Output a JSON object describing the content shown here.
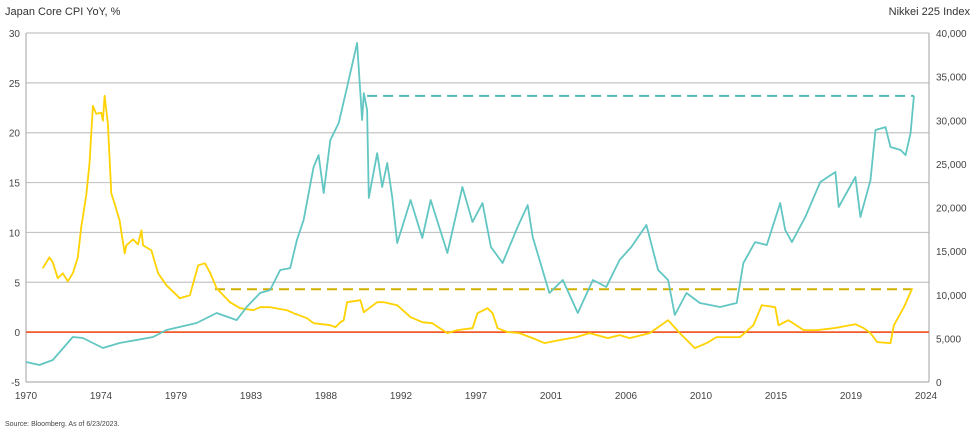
{
  "chart_data": {
    "type": "line",
    "title_left": "Japan Core CPI YoY, %",
    "title_right": "Nikkei 225 Index",
    "source": "Source: Bloomberg. As of 6/23/2023.",
    "xlim": [
      1970,
      2024
    ],
    "x_ticks": [
      "1970",
      "1974",
      "1979",
      "1983",
      "1988",
      "1992",
      "1997",
      "2001",
      "2006",
      "2010",
      "2015",
      "2019",
      "2024"
    ],
    "y_left": {
      "label": "Japan Core CPI YoY, %",
      "lim": [
        -5,
        30
      ],
      "ticks": [
        "30",
        "25",
        "20",
        "15",
        "10",
        "5",
        "0",
        "-5"
      ]
    },
    "y_right": {
      "label": "Nikkei 225 Index",
      "lim": [
        0,
        40000
      ],
      "ticks": [
        "40,000",
        "35,000",
        "30,000",
        "25,000",
        "20,000",
        "15,000",
        "10,000",
        "5,000",
        "0"
      ]
    },
    "grid": true,
    "colors": {
      "cpi": "#FFD200",
      "cpi_ref": "#D2B000",
      "nikkei": "#62C6C2",
      "nikkei_ref": "#52B8B2",
      "zero": "#F05A28",
      "grid": "#C4C4C4"
    },
    "series": [
      {
        "name": "Japan Core CPI YoY",
        "axis": "left",
        "points": [
          [
            1971.0,
            6.4
          ],
          [
            1971.4,
            7.5
          ],
          [
            1971.6,
            7.0
          ],
          [
            1971.9,
            5.4
          ],
          [
            1972.2,
            5.9
          ],
          [
            1972.5,
            5.1
          ],
          [
            1972.8,
            5.9
          ],
          [
            1973.1,
            7.5
          ],
          [
            1973.3,
            10.5
          ],
          [
            1973.6,
            13.7
          ],
          [
            1973.8,
            16.9
          ],
          [
            1974.0,
            22.7
          ],
          [
            1974.2,
            21.9
          ],
          [
            1974.5,
            22.0
          ],
          [
            1974.6,
            21.2
          ],
          [
            1974.7,
            23.7
          ],
          [
            1974.9,
            20.9
          ],
          [
            1975.1,
            13.9
          ],
          [
            1975.3,
            12.9
          ],
          [
            1975.6,
            11.2
          ],
          [
            1975.9,
            7.9
          ],
          [
            1976.0,
            8.7
          ],
          [
            1976.4,
            9.3
          ],
          [
            1976.7,
            8.8
          ],
          [
            1976.9,
            10.2
          ],
          [
            1977.0,
            8.7
          ],
          [
            1977.5,
            8.2
          ],
          [
            1977.9,
            5.9
          ],
          [
            1978.4,
            4.7
          ],
          [
            1979.2,
            3.4
          ],
          [
            1979.8,
            3.7
          ],
          [
            1980.3,
            6.7
          ],
          [
            1980.7,
            6.9
          ],
          [
            1981.0,
            6.0
          ],
          [
            1981.4,
            4.4
          ],
          [
            1982.2,
            3.0
          ],
          [
            1982.8,
            2.4
          ],
          [
            1983.6,
            2.2
          ],
          [
            1984.0,
            2.5
          ],
          [
            1984.6,
            2.5
          ],
          [
            1985.6,
            2.2
          ],
          [
            1986.0,
            1.9
          ],
          [
            1986.8,
            1.4
          ],
          [
            1987.2,
            0.9
          ],
          [
            1988.2,
            0.7
          ],
          [
            1988.5,
            0.5
          ],
          [
            1988.8,
            1.0
          ],
          [
            1989.0,
            1.2
          ],
          [
            1989.2,
            3.0
          ],
          [
            1990.0,
            3.2
          ],
          [
            1990.2,
            2.0
          ],
          [
            1991.0,
            3.0
          ],
          [
            1991.4,
            3.0
          ],
          [
            1992.2,
            2.7
          ],
          [
            1993.0,
            1.5
          ],
          [
            1993.7,
            1.0
          ],
          [
            1994.3,
            0.9
          ],
          [
            1995.2,
            -0.1
          ],
          [
            1995.8,
            0.2
          ],
          [
            1996.7,
            0.4
          ],
          [
            1997.0,
            1.9
          ],
          [
            1997.6,
            2.4
          ],
          [
            1997.9,
            1.9
          ],
          [
            1998.2,
            0.4
          ],
          [
            1998.8,
            0.0
          ],
          [
            1999.5,
            -0.1
          ],
          [
            2000.3,
            -0.6
          ],
          [
            2001.0,
            -1.1
          ],
          [
            2001.9,
            -0.8
          ],
          [
            2002.9,
            -0.5
          ],
          [
            2003.7,
            -0.1
          ],
          [
            2004.8,
            -0.6
          ],
          [
            2005.5,
            -0.3
          ],
          [
            2006.1,
            -0.6
          ],
          [
            2007.3,
            -0.1
          ],
          [
            2008.4,
            1.2
          ],
          [
            2009.1,
            -0.1
          ],
          [
            2010.0,
            -1.6
          ],
          [
            2010.7,
            -1.1
          ],
          [
            2011.3,
            -0.5
          ],
          [
            2012.7,
            -0.5
          ],
          [
            2013.5,
            0.7
          ],
          [
            2014.0,
            2.7
          ],
          [
            2014.8,
            2.5
          ],
          [
            2015.0,
            0.7
          ],
          [
            2015.6,
            1.2
          ],
          [
            2016.5,
            0.2
          ],
          [
            2017.3,
            0.2
          ],
          [
            2018.3,
            0.4
          ],
          [
            2019.6,
            0.8
          ],
          [
            2020.1,
            0.4
          ],
          [
            2020.5,
            -0.1
          ],
          [
            2020.9,
            -1.0
          ],
          [
            2021.7,
            -1.1
          ],
          [
            2021.9,
            0.7
          ],
          [
            2022.5,
            2.5
          ],
          [
            2023.0,
            4.4
          ]
        ]
      },
      {
        "name": "Nikkei 225 Index",
        "axis": "right",
        "points": [
          [
            1970.0,
            2290
          ],
          [
            1970.8,
            1950
          ],
          [
            1971.6,
            2520
          ],
          [
            1972.8,
            5160
          ],
          [
            1973.4,
            5040
          ],
          [
            1974.6,
            3900
          ],
          [
            1975.6,
            4470
          ],
          [
            1977.6,
            5160
          ],
          [
            1978.4,
            5960
          ],
          [
            1980.2,
            6760
          ],
          [
            1981.4,
            7910
          ],
          [
            1982.6,
            7100
          ],
          [
            1983.2,
            8600
          ],
          [
            1984.0,
            10200
          ],
          [
            1984.6,
            10540
          ],
          [
            1985.2,
            12840
          ],
          [
            1985.8,
            13060
          ],
          [
            1986.2,
            16270
          ],
          [
            1986.6,
            18560
          ],
          [
            1987.2,
            24640
          ],
          [
            1987.5,
            26010
          ],
          [
            1987.8,
            21660
          ],
          [
            1988.2,
            27730
          ],
          [
            1988.7,
            29680
          ],
          [
            1989.2,
            33800
          ],
          [
            1989.8,
            38850
          ],
          [
            1990.1,
            30030
          ],
          [
            1990.2,
            33110
          ],
          [
            1990.4,
            31170
          ],
          [
            1990.5,
            21090
          ],
          [
            1991.0,
            26240
          ],
          [
            1991.3,
            22350
          ],
          [
            1991.6,
            25100
          ],
          [
            1991.9,
            21200
          ],
          [
            1992.2,
            15930
          ],
          [
            1993.0,
            20860
          ],
          [
            1993.7,
            16500
          ],
          [
            1994.2,
            20860
          ],
          [
            1995.2,
            14780
          ],
          [
            1996.1,
            22350
          ],
          [
            1996.7,
            18340
          ],
          [
            1997.3,
            20510
          ],
          [
            1997.8,
            15470
          ],
          [
            1998.5,
            13640
          ],
          [
            1999.4,
            17760
          ],
          [
            2000.0,
            20280
          ],
          [
            2000.3,
            16620
          ],
          [
            2001.3,
            10200
          ],
          [
            2002.1,
            11690
          ],
          [
            2003.0,
            7910
          ],
          [
            2003.9,
            11690
          ],
          [
            2004.7,
            10890
          ],
          [
            2005.5,
            13980
          ],
          [
            2006.2,
            15470
          ],
          [
            2007.1,
            17990
          ],
          [
            2007.8,
            12840
          ],
          [
            2008.4,
            11690
          ],
          [
            2008.8,
            7680
          ],
          [
            2009.5,
            10200
          ],
          [
            2010.3,
            9050
          ],
          [
            2011.5,
            8600
          ],
          [
            2012.5,
            9050
          ],
          [
            2012.9,
            13640
          ],
          [
            2013.6,
            16040
          ],
          [
            2014.3,
            15700
          ],
          [
            2015.1,
            20510
          ],
          [
            2015.4,
            17420
          ],
          [
            2015.8,
            16040
          ],
          [
            2016.6,
            18910
          ],
          [
            2017.5,
            22920
          ],
          [
            2018.4,
            24070
          ],
          [
            2018.6,
            20060
          ],
          [
            2019.6,
            23490
          ],
          [
            2019.9,
            18910
          ],
          [
            2020.5,
            23150
          ],
          [
            2020.8,
            28880
          ],
          [
            2021.4,
            29220
          ],
          [
            2021.7,
            26930
          ],
          [
            2022.3,
            26590
          ],
          [
            2022.6,
            26010
          ],
          [
            2022.9,
            28540
          ],
          [
            2023.1,
            32780
          ]
        ]
      }
    ],
    "reference_lines": [
      {
        "name": "CPI current level",
        "axis": "left",
        "value": 4.3,
        "from": 1981.3,
        "to": 2023.0,
        "style": "dashed"
      },
      {
        "name": "Nikkei current level",
        "axis": "right",
        "value": 32800,
        "from": 1990.4,
        "to": 2023.1,
        "style": "dashed"
      },
      {
        "name": "Zero line",
        "axis": "left",
        "value": 0,
        "style": "solid"
      }
    ]
  }
}
